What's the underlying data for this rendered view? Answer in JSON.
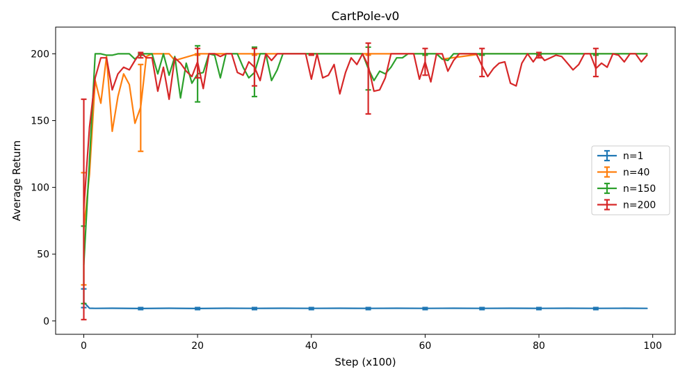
{
  "chart_data": {
    "type": "line",
    "title": "CartPole-v0",
    "xlabel": "Step (x100)",
    "ylabel": "Average Return",
    "xlim": [
      -4.95,
      103.95
    ],
    "ylim": [
      -10,
      220
    ],
    "xticks": [
      0,
      20,
      40,
      60,
      80,
      100
    ],
    "yticks": [
      0,
      50,
      100,
      150,
      200
    ],
    "grid": false,
    "legend_position": "center-right",
    "errorbar_every": 10,
    "series": [
      {
        "name": "n=1",
        "color": "#1f77b4",
        "x": [
          0,
          1,
          2,
          5,
          10,
          15,
          20,
          25,
          30,
          35,
          40,
          45,
          50,
          55,
          60,
          65,
          70,
          75,
          80,
          85,
          90,
          95,
          99
        ],
        "y": [
          14,
          9.5,
          9.4,
          9.5,
          9.3,
          9.5,
          9.3,
          9.5,
          9.4,
          9.5,
          9.4,
          9.5,
          9.4,
          9.5,
          9.4,
          9.5,
          9.4,
          9.5,
          9.4,
          9.5,
          9.4,
          9.5,
          9.4
        ],
        "errorbars": [
          {
            "x": 0,
            "low": 10,
            "high": 24
          },
          {
            "x": 10,
            "low": 8.5,
            "high": 10
          },
          {
            "x": 20,
            "low": 8.5,
            "high": 10
          },
          {
            "x": 30,
            "low": 8.5,
            "high": 10
          },
          {
            "x": 40,
            "low": 8.5,
            "high": 10
          },
          {
            "x": 50,
            "low": 8.5,
            "high": 10
          },
          {
            "x": 60,
            "low": 8.5,
            "high": 10
          },
          {
            "x": 70,
            "low": 8.5,
            "high": 10
          },
          {
            "x": 80,
            "low": 8.5,
            "high": 10
          },
          {
            "x": 90,
            "low": 8.5,
            "high": 10
          }
        ]
      },
      {
        "name": "n=40",
        "color": "#ff7f0e",
        "x": [
          0,
          1,
          2,
          3,
          4,
          5,
          6,
          7,
          8,
          9,
          10,
          11,
          12,
          13,
          14,
          15,
          16,
          20,
          30,
          40,
          50,
          60,
          62,
          63,
          70,
          80,
          90,
          99
        ],
        "y": [
          69,
          110,
          180,
          163,
          198,
          142,
          168,
          185,
          177,
          148,
          160,
          198,
          200,
          200,
          200,
          200,
          195,
          200,
          200,
          200,
          200,
          200,
          200,
          196,
          200,
          200,
          200,
          200
        ],
        "errorbars": [
          {
            "x": 0,
            "low": 27,
            "high": 111
          },
          {
            "x": 10,
            "low": 127,
            "high": 192
          },
          {
            "x": 20,
            "low": 199,
            "high": 200
          },
          {
            "x": 30,
            "low": 199,
            "high": 200
          },
          {
            "x": 40,
            "low": 199,
            "high": 200
          },
          {
            "x": 50,
            "low": 199,
            "high": 200
          },
          {
            "x": 60,
            "low": 199,
            "high": 200
          },
          {
            "x": 70,
            "low": 199,
            "high": 200
          },
          {
            "x": 80,
            "low": 199,
            "high": 200
          },
          {
            "x": 90,
            "low": 199,
            "high": 200
          }
        ]
      },
      {
        "name": "n=150",
        "color": "#2ca02c",
        "x": [
          0,
          1,
          2,
          3,
          4,
          5,
          6,
          7,
          8,
          9,
          10,
          11,
          12,
          13,
          14,
          15,
          16,
          17,
          18,
          19,
          20,
          21,
          22,
          23,
          24,
          25,
          26,
          27,
          28,
          29,
          30,
          31,
          32,
          33,
          34,
          35,
          36,
          40,
          45,
          48,
          49,
          50,
          51,
          52,
          53,
          54,
          55,
          56,
          57,
          60,
          62,
          63,
          64,
          65,
          70,
          80,
          90,
          99
        ],
        "y": [
          42,
          120,
          200,
          200,
          199,
          199,
          200,
          200,
          200,
          196,
          200,
          200,
          200,
          185,
          200,
          184,
          198,
          167,
          193,
          178,
          185,
          186,
          200,
          199,
          182,
          200,
          200,
          200,
          190,
          182,
          186,
          200,
          200,
          180,
          188,
          200,
          200,
          200,
          200,
          200,
          200,
          189,
          180,
          187,
          185,
          190,
          197,
          197,
          200,
          200,
          200,
          196,
          195,
          200,
          200,
          200,
          200,
          200
        ],
        "errorbars": [
          {
            "x": 0,
            "low": 13,
            "high": 71
          },
          {
            "x": 10,
            "low": 199,
            "high": 200
          },
          {
            "x": 20,
            "low": 164,
            "high": 206
          },
          {
            "x": 30,
            "low": 168,
            "high": 205
          },
          {
            "x": 40,
            "low": 199,
            "high": 200
          },
          {
            "x": 50,
            "low": 173,
            "high": 205
          },
          {
            "x": 60,
            "low": 199,
            "high": 200
          },
          {
            "x": 70,
            "low": 199,
            "high": 200
          },
          {
            "x": 80,
            "low": 199,
            "high": 200
          },
          {
            "x": 90,
            "low": 199,
            "high": 200
          }
        ]
      },
      {
        "name": "n=200",
        "color": "#d62728",
        "x": [
          0,
          1,
          2,
          3,
          4,
          5,
          6,
          7,
          8,
          9,
          10,
          11,
          12,
          13,
          14,
          15,
          16,
          17,
          18,
          19,
          20,
          21,
          22,
          23,
          24,
          25,
          26,
          27,
          28,
          29,
          30,
          31,
          32,
          33,
          34,
          35,
          36,
          37,
          38,
          39,
          40,
          41,
          42,
          43,
          44,
          45,
          46,
          47,
          48,
          49,
          50,
          51,
          52,
          53,
          54,
          55,
          56,
          57,
          58,
          59,
          60,
          61,
          62,
          63,
          64,
          65,
          66,
          67,
          68,
          69,
          70,
          71,
          72,
          73,
          74,
          75,
          76,
          77,
          78,
          79,
          80,
          81,
          82,
          83,
          84,
          85,
          86,
          87,
          88,
          89,
          90,
          91,
          92,
          93,
          94,
          95,
          96,
          97,
          98,
          99
        ],
        "y": [
          84,
          145,
          182,
          197,
          197,
          173,
          185,
          190,
          188,
          195,
          201,
          197,
          197,
          172,
          190,
          166,
          197,
          193,
          187,
          183,
          194,
          174,
          200,
          200,
          198,
          200,
          200,
          186,
          184,
          194,
          190,
          180,
          200,
          195,
          200,
          200,
          200,
          200,
          200,
          200,
          181,
          200,
          182,
          184,
          192,
          170,
          186,
          197,
          192,
          200,
          191,
          172,
          173,
          182,
          200,
          200,
          200,
          200,
          200,
          181,
          194,
          179,
          200,
          200,
          187,
          195,
          200,
          200,
          200,
          200,
          191,
          183,
          189,
          193,
          194,
          178,
          176,
          193,
          200,
          194,
          200,
          195,
          197,
          199,
          198,
          193,
          188,
          192,
          200,
          200,
          189,
          193,
          190,
          200,
          199,
          194,
          200,
          200,
          194,
          199
        ],
        "errorbars": [
          {
            "x": 0,
            "low": 1,
            "high": 166
          },
          {
            "x": 10,
            "low": 197,
            "high": 201
          },
          {
            "x": 20,
            "low": 182,
            "high": 204
          },
          {
            "x": 30,
            "low": 176,
            "high": 204
          },
          {
            "x": 40,
            "low": 199,
            "high": 200
          },
          {
            "x": 50,
            "low": 155,
            "high": 208
          },
          {
            "x": 60,
            "low": 184,
            "high": 204
          },
          {
            "x": 70,
            "low": 183,
            "high": 204
          },
          {
            "x": 80,
            "low": 197,
            "high": 201
          },
          {
            "x": 90,
            "low": 183,
            "high": 204
          }
        ]
      }
    ]
  }
}
